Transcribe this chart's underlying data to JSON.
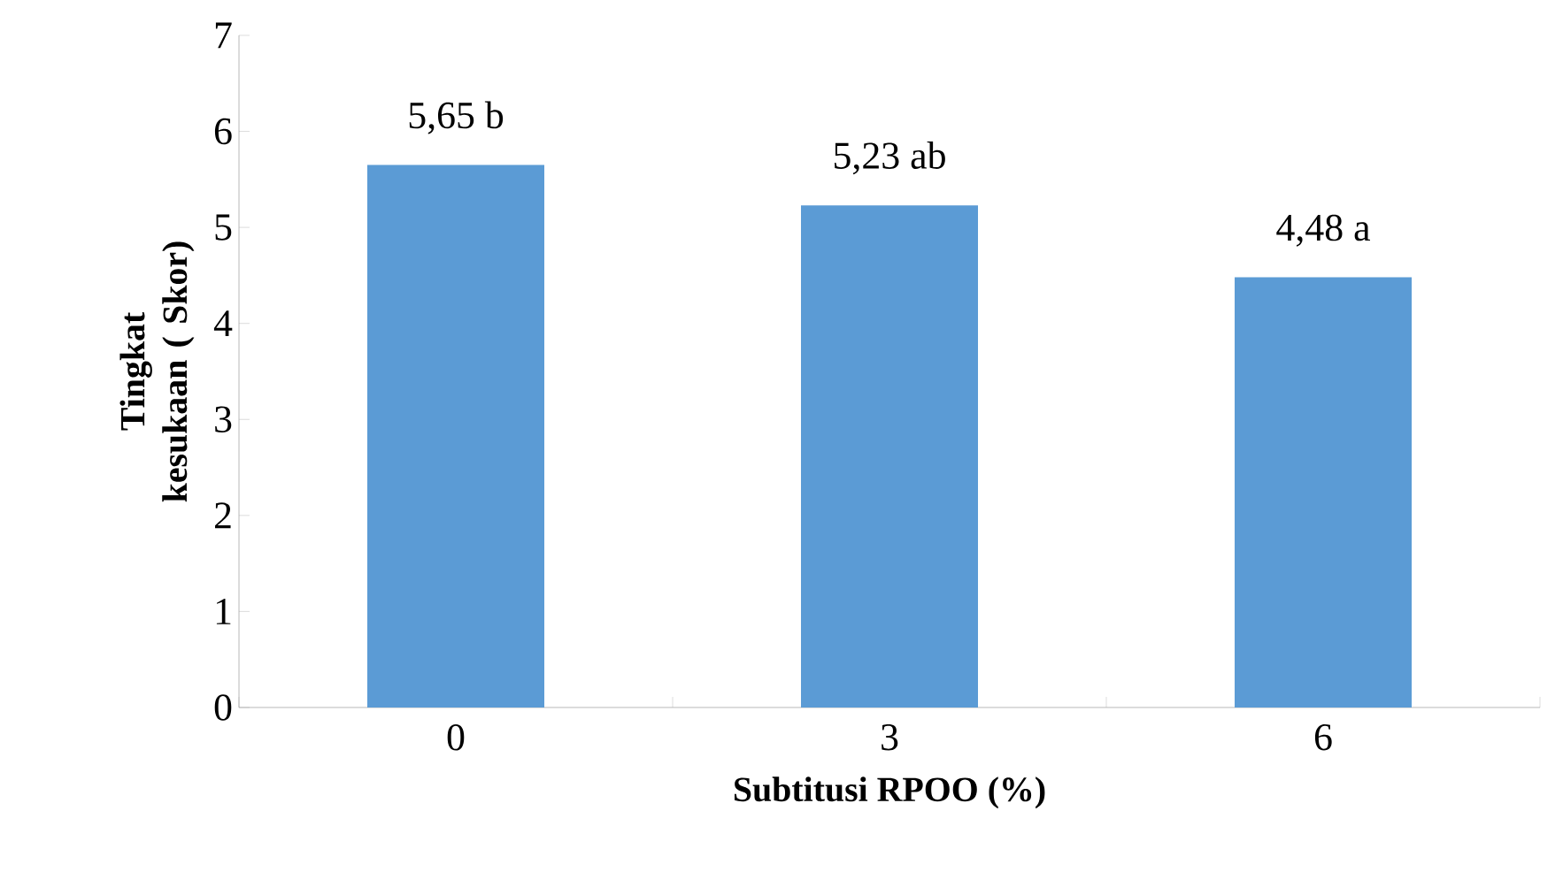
{
  "chart_data": {
    "type": "bar",
    "xlabel": "Subtitusi RPOO (%)",
    "ylabel": "Tingkat kesukaan ( Skor)",
    "categories": [
      "0",
      "3",
      "6"
    ],
    "values": [
      5.65,
      5.23,
      4.48
    ],
    "value_labels": [
      "5,65 b",
      "5,23 ab",
      "4,48 a"
    ],
    "color": "#5b9bd5",
    "ylim": [
      0,
      7
    ],
    "yticks": [
      0,
      1,
      2,
      3,
      4,
      5,
      6,
      7
    ],
    "grid": false
  }
}
